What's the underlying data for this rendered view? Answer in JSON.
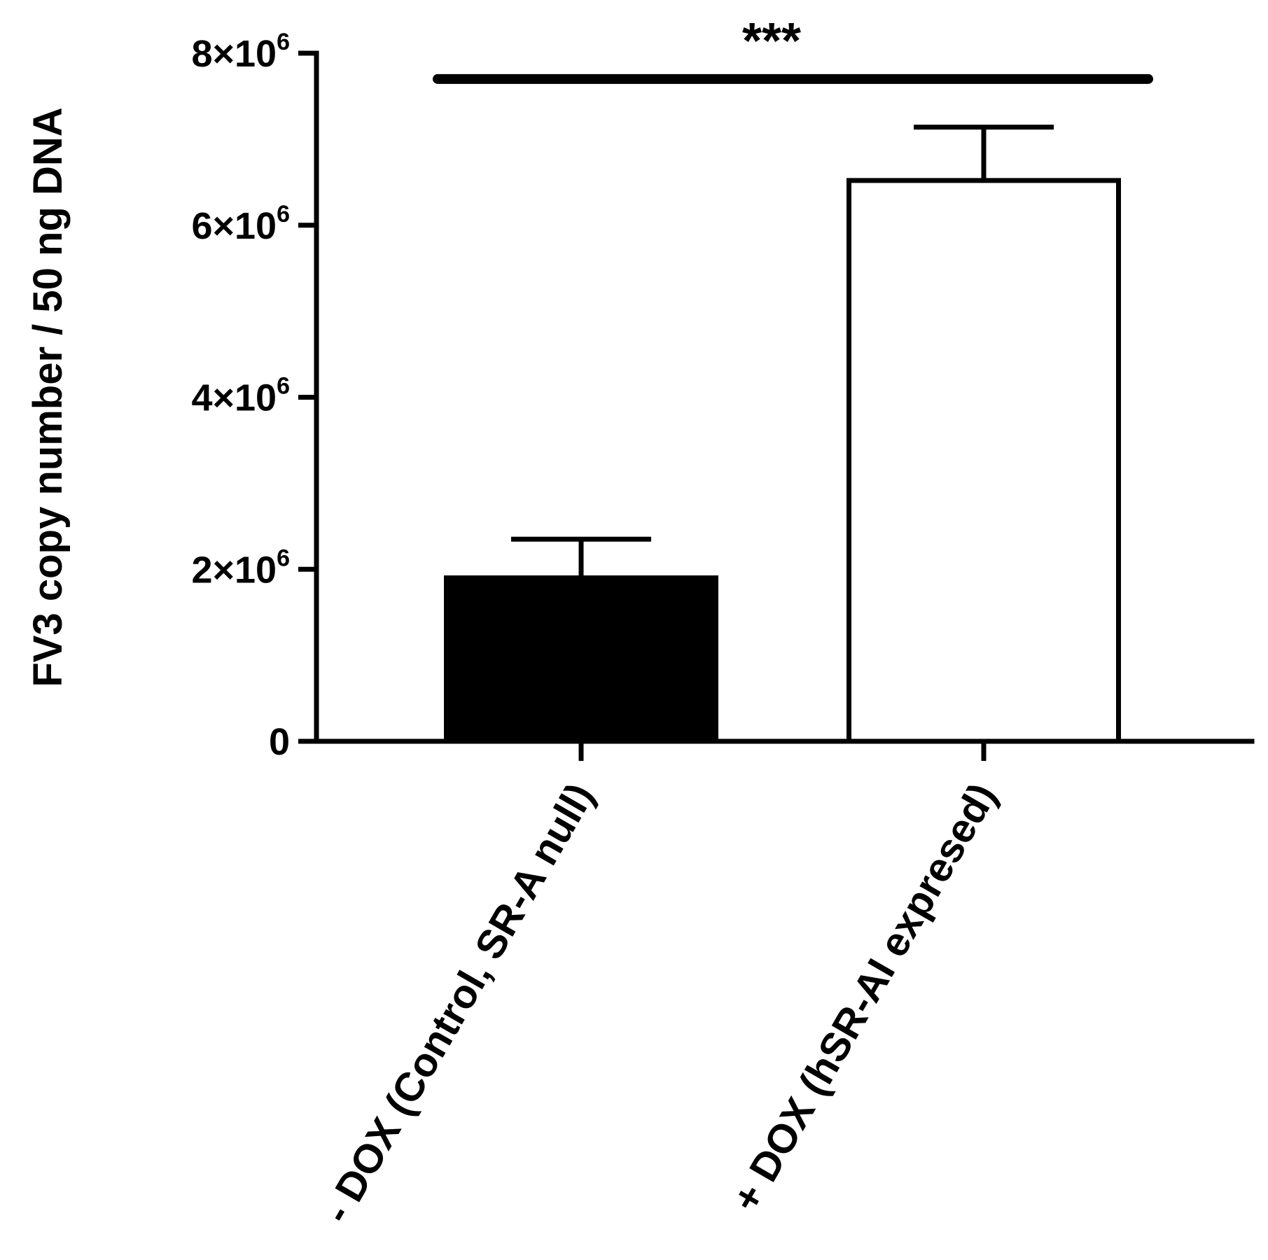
{
  "chart_data": {
    "type": "bar",
    "categories": [
      "- DOX (Control, SR-A null)",
      "+ DOX (hSR-AI expresed)"
    ],
    "values": [
      1900000,
      6520000
    ],
    "errors": [
      450000,
      620000
    ],
    "bar_fills": [
      "#000000",
      "#ffffff"
    ],
    "ylabel": "FV3 copy number / 50 ng DNA",
    "ylim": [
      0,
      8000000
    ],
    "yticks": [
      {
        "value": 0,
        "base": "0",
        "exp": ""
      },
      {
        "value": 2000000,
        "base": "2×10",
        "exp": "6"
      },
      {
        "value": 4000000,
        "base": "4×10",
        "exp": "6"
      },
      {
        "value": 6000000,
        "base": "6×10",
        "exp": "6"
      },
      {
        "value": 8000000,
        "base": "8×10",
        "exp": "6"
      }
    ],
    "significance": {
      "label": "***",
      "value": 7700000
    },
    "grid": false
  }
}
